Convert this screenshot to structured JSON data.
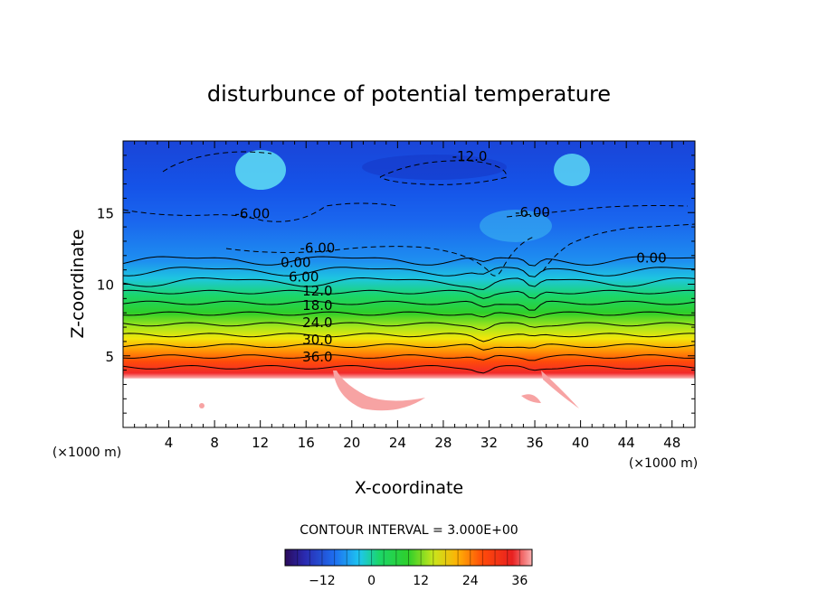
{
  "chart_data": {
    "type": "heatmap",
    "title": "disturbunce of potential temperature",
    "xlabel": "X-coordinate",
    "ylabel": "Z-coordinate",
    "x_unit": "(×1000 m)",
    "z_unit": "(×1000 m)",
    "xlim": [
      0,
      50
    ],
    "ylim": [
      0,
      20
    ],
    "x_ticks": [
      4,
      8,
      12,
      16,
      20,
      24,
      28,
      32,
      36,
      40,
      44,
      48
    ],
    "y_ticks": [
      5,
      10,
      15
    ],
    "contour_interval_text": "CONTOUR INTERVAL = 3.000E+00",
    "contour_interval": 3,
    "contour_labels": [
      {
        "text": "-12.0",
        "x": 30.3,
        "z": 18.6
      },
      {
        "text": "-6.00",
        "x": 11.3,
        "z": 14.6
      },
      {
        "text": "-6.00",
        "x": 35.8,
        "z": 14.7
      },
      {
        "text": "-6.00",
        "x": 17.0,
        "z": 12.2
      },
      {
        "text": "0.00",
        "x": 15.1,
        "z": 11.2
      },
      {
        "text": "0.00",
        "x": 46.2,
        "z": 11.5
      },
      {
        "text": "6.00",
        "x": 15.8,
        "z": 10.2
      },
      {
        "text": "12.0",
        "x": 17.0,
        "z": 9.2
      },
      {
        "text": "18.0",
        "x": 17.0,
        "z": 8.2
      },
      {
        "text": "24.0",
        "x": 17.0,
        "z": 7.0
      },
      {
        "text": "30.0",
        "x": 17.0,
        "z": 5.8
      },
      {
        "text": "36.0",
        "x": 17.0,
        "z": 4.6
      }
    ],
    "colorbar": {
      "min": -21,
      "max": 39,
      "ticks": [
        -12,
        0,
        12,
        24,
        36
      ]
    }
  }
}
